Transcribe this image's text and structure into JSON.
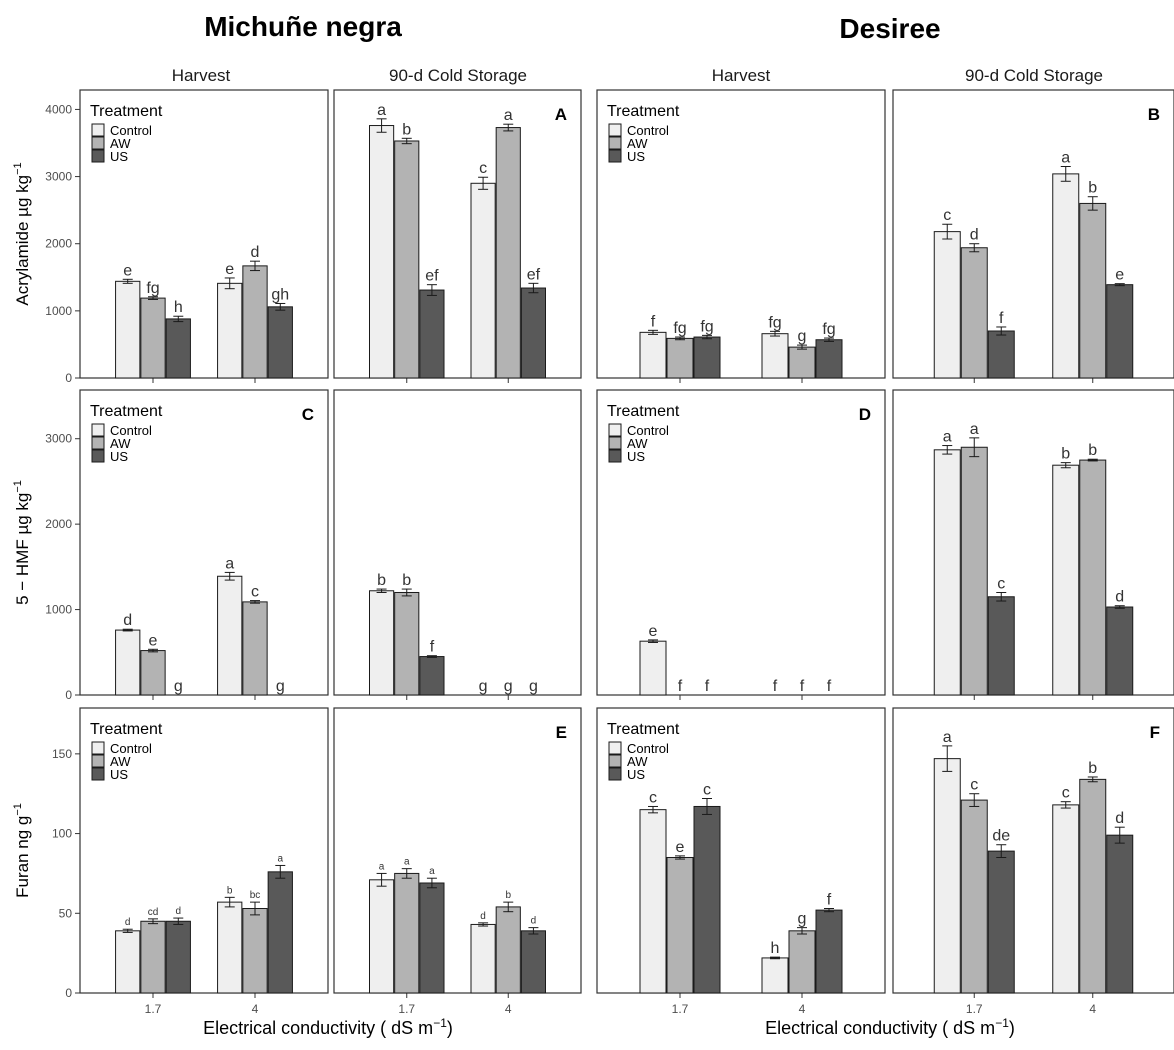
{
  "figure": {
    "cultivar_titles": [
      "Michuñe negra",
      "Desiree"
    ],
    "facet_titles": [
      "Harvest",
      "90-d Cold Storage",
      "Harvest",
      "90-d Cold Storage"
    ],
    "x_axis_label": "Electrical conductivity ( dS m",
    "x_axis_label_sup": "−1",
    "x_axis_label_end": ")",
    "legend": {
      "title": "Treatment",
      "entries": [
        "Control",
        "AW",
        "US"
      ],
      "colors": [
        "#efefef",
        "#b3b3b3",
        "#595959"
      ]
    }
  },
  "chart_data": [
    {
      "type": "bar",
      "row": 0,
      "ylabel": "Acrylamide µg kg",
      "ylabel_sup": "−1",
      "ylim": [
        0,
        4200
      ],
      "yticks": [
        0,
        1000,
        2000,
        3000,
        4000
      ],
      "panels": [
        {
          "letter": "",
          "legend": true,
          "values": [
            [
              1440,
              1190,
              880
            ],
            [
              1410,
              1670,
              1060
            ]
          ],
          "errors": [
            [
              30,
              20,
              40
            ],
            [
              80,
              70,
              50
            ]
          ],
          "labels": [
            [
              "e",
              "fg",
              "h"
            ],
            [
              "e",
              "d",
              "gh"
            ]
          ]
        },
        {
          "letter": "A",
          "legend": false,
          "values": [
            [
              3760,
              3530,
              1310
            ],
            [
              2900,
              3730,
              1340
            ]
          ],
          "errors": [
            [
              100,
              40,
              80
            ],
            [
              90,
              50,
              70
            ]
          ],
          "labels": [
            [
              "a",
              "b",
              "ef"
            ],
            [
              "c",
              "a",
              "ef"
            ]
          ]
        },
        {
          "letter": "",
          "legend": true,
          "values": [
            [
              680,
              590,
              610
            ],
            [
              660,
              460,
              570
            ]
          ],
          "errors": [
            [
              30,
              20,
              25
            ],
            [
              35,
              30,
              25
            ]
          ],
          "labels": [
            [
              "f",
              "fg",
              "fg"
            ],
            [
              "fg",
              "g",
              "fg"
            ]
          ]
        },
        {
          "letter": "B",
          "legend": false,
          "values": [
            [
              2180,
              1940,
              700
            ],
            [
              3040,
              2600,
              1390
            ]
          ],
          "errors": [
            [
              110,
              60,
              60
            ],
            [
              110,
              100,
              15
            ]
          ],
          "labels": [
            [
              "c",
              "d",
              "f"
            ],
            [
              "a",
              "b",
              "e"
            ]
          ]
        }
      ]
    },
    {
      "type": "bar",
      "row": 1,
      "ylabel": "5 − HMF µg kg",
      "ylabel_sup": "−1",
      "ylim": [
        0,
        3500
      ],
      "yticks": [
        0,
        1000,
        2000,
        3000
      ],
      "panels": [
        {
          "letter": "C",
          "legend": true,
          "values": [
            [
              760,
              520,
              0
            ],
            [
              1390,
              1090,
              0
            ]
          ],
          "errors": [
            [
              10,
              15,
              0
            ],
            [
              45,
              15,
              0
            ]
          ],
          "labels": [
            [
              "d",
              "e",
              "g"
            ],
            [
              "a",
              "c",
              "g"
            ]
          ]
        },
        {
          "letter": "",
          "legend": false,
          "values": [
            [
              1220,
              1200,
              450
            ],
            [
              0,
              0,
              0
            ]
          ],
          "errors": [
            [
              20,
              40,
              10
            ],
            [
              0,
              0,
              0
            ]
          ],
          "labels": [
            [
              "b",
              "b",
              "f"
            ],
            [
              "g",
              "g",
              "g"
            ]
          ]
        },
        {
          "letter": "D",
          "legend": true,
          "values": [
            [
              630,
              0,
              0
            ],
            [
              0,
              0,
              0
            ]
          ],
          "errors": [
            [
              15,
              0,
              0
            ],
            [
              0,
              0,
              0
            ]
          ],
          "labels": [
            [
              "e",
              "f",
              "f"
            ],
            [
              "f",
              "f",
              "f"
            ]
          ]
        },
        {
          "letter": "",
          "legend": false,
          "values": [
            [
              2870,
              2900,
              1150
            ],
            [
              2690,
              2750,
              1030
            ]
          ],
          "errors": [
            [
              50,
              110,
              50
            ],
            [
              30,
              10,
              15
            ]
          ],
          "labels": [
            [
              "a",
              "a",
              "c"
            ],
            [
              "b",
              "b",
              "d"
            ]
          ]
        }
      ]
    },
    {
      "type": "bar",
      "row": 2,
      "ylabel": "Furan ng g",
      "ylabel_sup": "−1",
      "ylim": [
        0,
        175
      ],
      "yticks": [
        0,
        50,
        100,
        150
      ],
      "panels": [
        {
          "letter": "",
          "legend": true,
          "small_labels": true,
          "values": [
            [
              39,
              45,
              45
            ],
            [
              57,
              53,
              76
            ]
          ],
          "errors": [
            [
              1,
              1.5,
              2
            ],
            [
              3,
              4,
              4
            ]
          ],
          "labels": [
            [
              "d",
              "cd",
              "d"
            ],
            [
              "b",
              "bc",
              "a"
            ]
          ]
        },
        {
          "letter": "E",
          "legend": false,
          "small_labels": true,
          "values": [
            [
              71,
              75,
              69
            ],
            [
              43,
              54,
              39
            ]
          ],
          "errors": [
            [
              4,
              3,
              3
            ],
            [
              1,
              3,
              2
            ]
          ],
          "labels": [
            [
              "a",
              "a",
              "a"
            ],
            [
              "d",
              "b",
              "d"
            ]
          ]
        },
        {
          "letter": "",
          "legend": true,
          "small_labels": false,
          "values": [
            [
              115,
              85,
              117
            ],
            [
              22,
              39,
              52
            ]
          ],
          "errors": [
            [
              2,
              1,
              5
            ],
            [
              0.5,
              2,
              1
            ]
          ],
          "labels": [
            [
              "c",
              "e",
              "c"
            ],
            [
              "h",
              "g",
              "f"
            ]
          ]
        },
        {
          "letter": "F",
          "legend": false,
          "small_labels": false,
          "values": [
            [
              147,
              121,
              89
            ],
            [
              118,
              134,
              99
            ]
          ],
          "errors": [
            [
              8,
              4,
              4
            ],
            [
              2,
              1.5,
              5
            ]
          ],
          "labels": [
            [
              "a",
              "c",
              "de"
            ],
            [
              "c",
              "b",
              "d"
            ]
          ]
        }
      ]
    }
  ],
  "x_categories": [
    "1.7",
    "4"
  ]
}
